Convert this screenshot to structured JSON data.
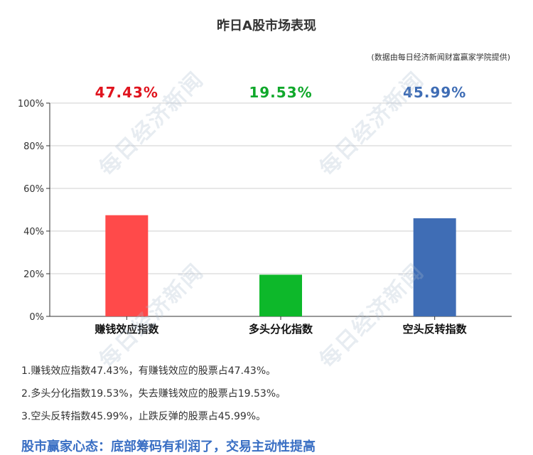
{
  "header": {
    "title": "昨日A股市场表现",
    "source": "(数据由每日经济新闻财富赢家学院提供)"
  },
  "watermark": "每日经济新闻",
  "chart_data": {
    "type": "bar",
    "categories": [
      "赚钱效应指数",
      "多头分化指数",
      "空头反转指数"
    ],
    "values": [
      47.43,
      19.53,
      45.99
    ],
    "value_labels": [
      "47.43%",
      "19.53%",
      "45.99%"
    ],
    "colors": [
      "#ff4a4a",
      "#0db82a",
      "#3f6db5"
    ],
    "label_colors": [
      "#e0141e",
      "#10a82b",
      "#3f6db5"
    ],
    "ylim": [
      0,
      100
    ],
    "yticks": [
      0,
      20,
      40,
      60,
      80,
      100
    ],
    "ytick_labels": [
      "0%",
      "20%",
      "40%",
      "60%",
      "80%",
      "100%"
    ],
    "grid": true,
    "xlabel": "",
    "ylabel": ""
  },
  "notes": [
    "1.赚钱效应指数47.43%，有赚钱效应的股票占47.43%。",
    "2.多头分化指数19.53%，失去赚钱效应的股票占19.53%。",
    "3.空头反转指数45.99%，止跌反弹的股票占45.99%。"
  ],
  "summary": "股市赢家心态：底部筹码有利润了，交易主动性提高"
}
